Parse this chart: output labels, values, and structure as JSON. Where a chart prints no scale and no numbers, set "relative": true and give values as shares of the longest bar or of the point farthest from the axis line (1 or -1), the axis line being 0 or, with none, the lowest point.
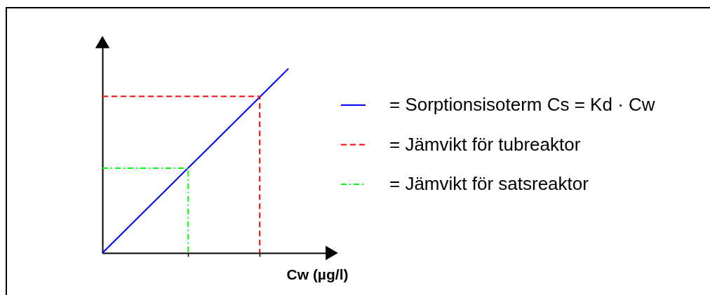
{
  "chart_data": {
    "type": "line",
    "relative": true,
    "xlabel": "Cw (µg/l)",
    "legend": "right",
    "grid": false,
    "categories": [
      null,
      null,
      null,
      null,
      null,
      null,
      null,
      null,
      null,
      null,
      null,
      null,
      null,
      null
    ],
    "series": [
      {
        "name": "= Sorptionsisoterm Cs = Kd · Cw",
        "color": "#0000ff",
        "line_style": "solid",
        "values": [
          0,
          0.077,
          0.154,
          0.231,
          0.308,
          0.385,
          0.462,
          0.538,
          0.615,
          0.692,
          0.769,
          0.846,
          0.923,
          1
        ]
      },
      {
        "name": "= Jämvikt för tubreaktor",
        "type": "step",
        "color": "#ff0000",
        "line_style": "dashed",
        "values": [
          0.85,
          0.85,
          0.85,
          0.85,
          0.85,
          0.85,
          0.85,
          0.85,
          0.85,
          0.85,
          0.85,
          0,
          null,
          null
        ]
      },
      {
        "name": "= Jämvikt för satsreaktor",
        "type": "step",
        "color": "#00ff00",
        "line_style": "dashdot",
        "values": [
          0.46,
          0.46,
          0.46,
          0.46,
          0.46,
          0.46,
          0,
          null,
          null,
          null,
          null,
          null,
          null,
          null
        ]
      }
    ]
  }
}
